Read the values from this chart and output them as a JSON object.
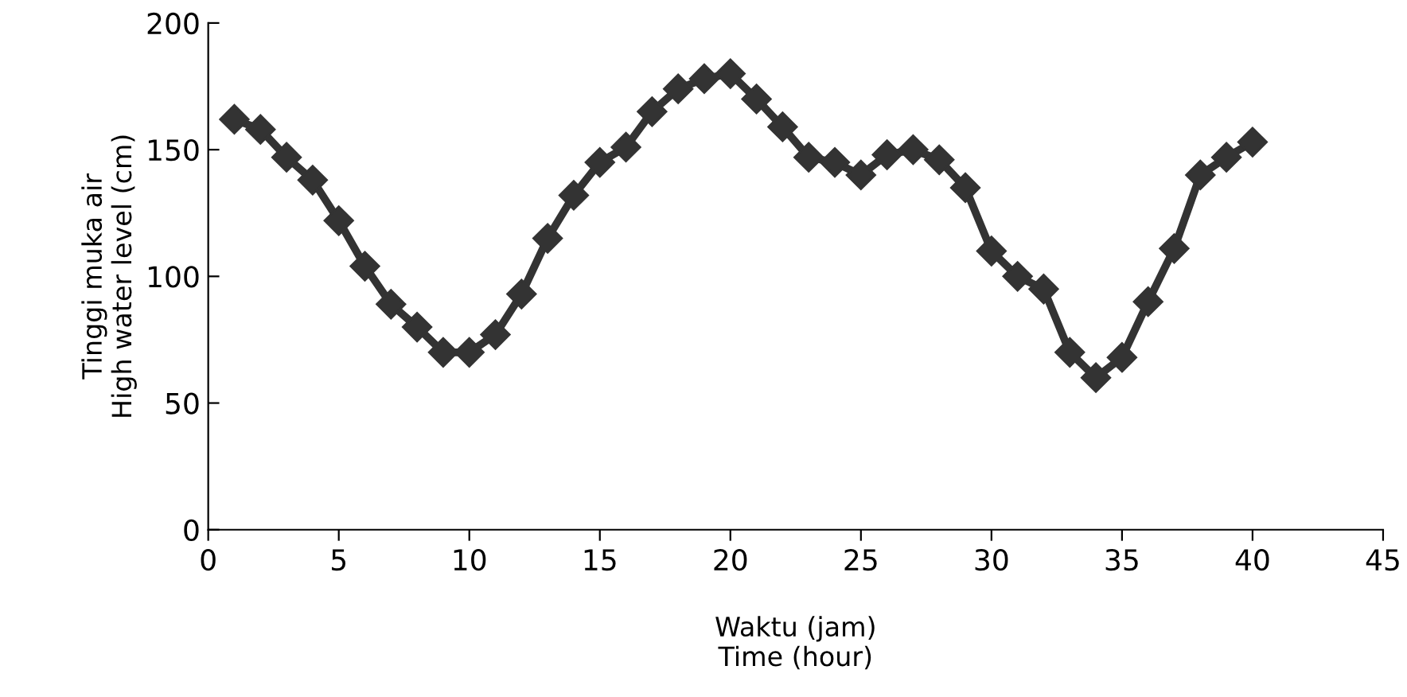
{
  "chart_data": {
    "type": "line",
    "xlabel": "Waktu (jam)\nTime (hour)",
    "ylabel": "Tinggi muka air\nHigh water level (cm)",
    "x": [
      1,
      2,
      3,
      4,
      5,
      6,
      7,
      8,
      9,
      10,
      11,
      12,
      13,
      14,
      15,
      16,
      17,
      18,
      19,
      20,
      21,
      22,
      23,
      24,
      25,
      26,
      27,
      28,
      29,
      30,
      31,
      32,
      33,
      34,
      35,
      36,
      37,
      38,
      39,
      40
    ],
    "series": [
      {
        "color": "#333333",
        "values": [
          162,
          158,
          147,
          138,
          122,
          104,
          89,
          80,
          70,
          70,
          77,
          93,
          115,
          132,
          145,
          151,
          165,
          174,
          178,
          180,
          170,
          159,
          147,
          145,
          140,
          148,
          150,
          146,
          135,
          110,
          100,
          95,
          70,
          60,
          68,
          90,
          111,
          140,
          147,
          153
        ]
      }
    ],
    "xlim": [
      0,
      45
    ],
    "xticks": [
      0,
      5,
      10,
      15,
      20,
      25,
      30,
      35,
      40,
      45
    ],
    "ylim": [
      0,
      200
    ],
    "yticks": [
      0,
      50,
      100,
      150,
      200
    ],
    "marker": "diamond",
    "line_style": "solid",
    "grid": false,
    "legend": false
  }
}
